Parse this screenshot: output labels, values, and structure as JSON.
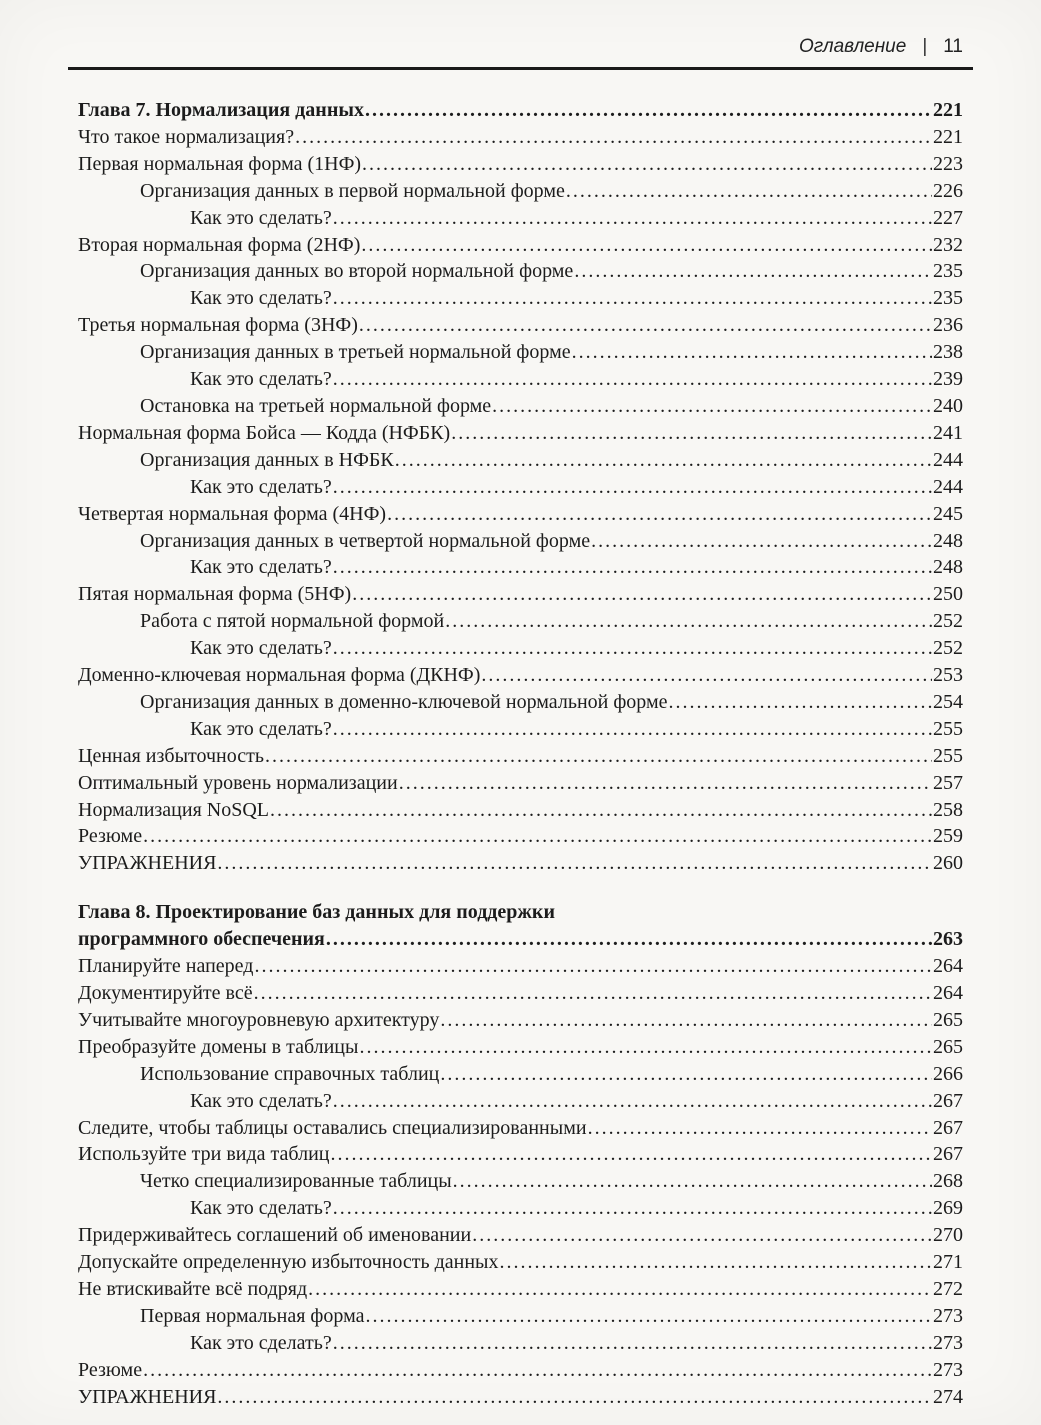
{
  "header": {
    "running_title": "Оглавление",
    "separator": "|",
    "page_number": "11"
  },
  "toc": {
    "entries": [
      {
        "label": "Глава 7. Нормализация данных",
        "page": "221",
        "level": 0,
        "chapter": true,
        "space_before": false
      },
      {
        "label": "Что такое нормализация?",
        "page": "221",
        "level": 0,
        "chapter": false,
        "space_before": false
      },
      {
        "label": "Первая нормальная форма (1НФ)",
        "page": "223",
        "level": 0,
        "chapter": false,
        "space_before": false
      },
      {
        "label": "Организация данных в первой нормальной форме",
        "page": "226",
        "level": 1,
        "chapter": false,
        "space_before": false
      },
      {
        "label": "Как это сделать?",
        "page": "227",
        "level": 2,
        "chapter": false,
        "space_before": false
      },
      {
        "label": "Вторая нормальная форма (2НФ)",
        "page": "232",
        "level": 0,
        "chapter": false,
        "space_before": false
      },
      {
        "label": "Организация данных во второй нормальной форме",
        "page": "235",
        "level": 1,
        "chapter": false,
        "space_before": false
      },
      {
        "label": "Как это сделать?",
        "page": "235",
        "level": 2,
        "chapter": false,
        "space_before": false
      },
      {
        "label": "Третья нормальная форма (3НФ)",
        "page": "236",
        "level": 0,
        "chapter": false,
        "space_before": false
      },
      {
        "label": "Организация данных в третьей нормальной форме",
        "page": "238",
        "level": 1,
        "chapter": false,
        "space_before": false
      },
      {
        "label": "Как это сделать?",
        "page": "239",
        "level": 2,
        "chapter": false,
        "space_before": false
      },
      {
        "label": "Остановка на третьей нормальной форме",
        "page": "240",
        "level": 1,
        "chapter": false,
        "space_before": false
      },
      {
        "label": "Нормальная форма Бойса — Кодда (НФБК)",
        "page": "241",
        "level": 0,
        "chapter": false,
        "space_before": false
      },
      {
        "label": "Организация данных в НФБК",
        "page": "244",
        "level": 1,
        "chapter": false,
        "space_before": false
      },
      {
        "label": "Как это сделать?",
        "page": "244",
        "level": 2,
        "chapter": false,
        "space_before": false
      },
      {
        "label": "Четвертая нормальная форма (4НФ)",
        "page": "245",
        "level": 0,
        "chapter": false,
        "space_before": false
      },
      {
        "label": "Организация данных в четвертой нормальной форме",
        "page": "248",
        "level": 1,
        "chapter": false,
        "space_before": false
      },
      {
        "label": "Как это сделать?",
        "page": "248",
        "level": 2,
        "chapter": false,
        "space_before": false
      },
      {
        "label": "Пятая нормальная форма (5НФ)",
        "page": "250",
        "level": 0,
        "chapter": false,
        "space_before": false
      },
      {
        "label": "Работа с пятой нормальной формой",
        "page": "252",
        "level": 1,
        "chapter": false,
        "space_before": false
      },
      {
        "label": "Как это сделать?",
        "page": "252",
        "level": 2,
        "chapter": false,
        "space_before": false
      },
      {
        "label": "Доменно-ключевая нормальная форма (ДКНФ)",
        "page": "253",
        "level": 0,
        "chapter": false,
        "space_before": false
      },
      {
        "label": "Организация данных в доменно-ключевой нормальной форме",
        "page": "254",
        "level": 1,
        "chapter": false,
        "space_before": false
      },
      {
        "label": "Как это сделать?",
        "page": "255",
        "level": 2,
        "chapter": false,
        "space_before": false
      },
      {
        "label": "Ценная избыточность",
        "page": "255",
        "level": 0,
        "chapter": false,
        "space_before": false
      },
      {
        "label": "Оптимальный уровень нормализации",
        "page": "257",
        "level": 0,
        "chapter": false,
        "space_before": false
      },
      {
        "label": "Нормализация NoSQL",
        "page": "258",
        "level": 0,
        "chapter": false,
        "space_before": false
      },
      {
        "label": "Резюме",
        "page": "259",
        "level": 0,
        "chapter": false,
        "space_before": false
      },
      {
        "label": "УПРАЖНЕНИЯ",
        "page": "260",
        "level": 0,
        "chapter": false,
        "space_before": false
      },
      {
        "label": "Глава 8. Проектирование баз данных для поддержки",
        "page": "",
        "level": 0,
        "chapter": true,
        "space_before": true
      },
      {
        "label": "программного обеспечения",
        "page": "263",
        "level": 0,
        "chapter": true,
        "space_before": false
      },
      {
        "label": "Планируйте наперед",
        "page": "264",
        "level": 0,
        "chapter": false,
        "space_before": false
      },
      {
        "label": "Документируйте всё",
        "page": "264",
        "level": 0,
        "chapter": false,
        "space_before": false
      },
      {
        "label": "Учитывайте многоуровневую архитектуру",
        "page": "265",
        "level": 0,
        "chapter": false,
        "space_before": false
      },
      {
        "label": "Преобразуйте домены в таблицы",
        "page": "265",
        "level": 0,
        "chapter": false,
        "space_before": false
      },
      {
        "label": "Использование справочных таблиц",
        "page": "266",
        "level": 1,
        "chapter": false,
        "space_before": false
      },
      {
        "label": "Как это сделать?",
        "page": "267",
        "level": 2,
        "chapter": false,
        "space_before": false
      },
      {
        "label": "Следите, чтобы таблицы оставались специализированными",
        "page": "267",
        "level": 0,
        "chapter": false,
        "space_before": false
      },
      {
        "label": "Используйте три вида таблиц",
        "page": "267",
        "level": 0,
        "chapter": false,
        "space_before": false
      },
      {
        "label": "Четко специализированные таблицы",
        "page": "268",
        "level": 1,
        "chapter": false,
        "space_before": false
      },
      {
        "label": "Как это сделать?",
        "page": "269",
        "level": 2,
        "chapter": false,
        "space_before": false
      },
      {
        "label": "Придерживайтесь соглашений об именовании",
        "page": "270",
        "level": 0,
        "chapter": false,
        "space_before": false
      },
      {
        "label": "Допускайте определенную избыточность данных",
        "page": "271",
        "level": 0,
        "chapter": false,
        "space_before": false
      },
      {
        "label": "Не втискивайте всё подряд",
        "page": "272",
        "level": 0,
        "chapter": false,
        "space_before": false
      },
      {
        "label": "Первая нормальная форма",
        "page": "273",
        "level": 1,
        "chapter": false,
        "space_before": false
      },
      {
        "label": "Как это сделать?",
        "page": "273",
        "level": 2,
        "chapter": false,
        "space_before": false
      },
      {
        "label": "Резюме",
        "page": "273",
        "level": 0,
        "chapter": false,
        "space_before": false
      },
      {
        "label": "УПРАЖНЕНИЯ",
        "page": "274",
        "level": 0,
        "chapter": false,
        "space_before": false
      }
    ]
  }
}
